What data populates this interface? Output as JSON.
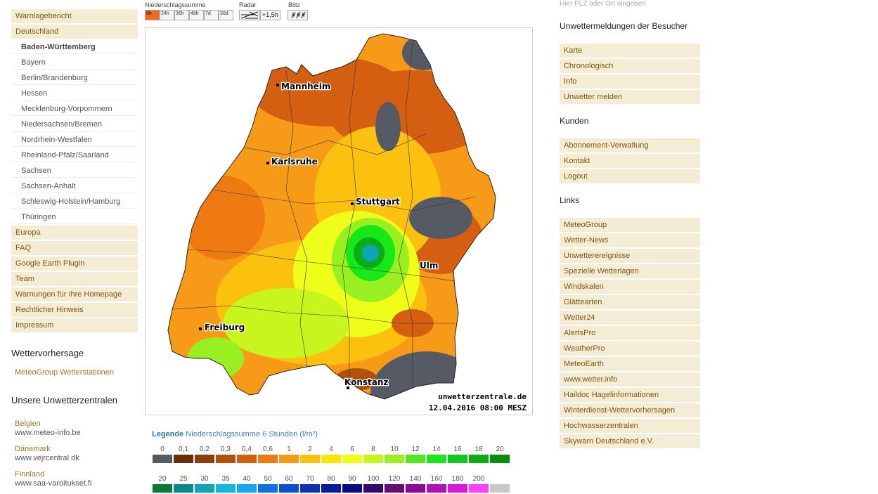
{
  "nav": {
    "top": [
      {
        "label": "Warnlagebericht"
      },
      {
        "label": "Deutschland"
      }
    ],
    "states": [
      {
        "label": "Baden-Württemberg"
      },
      {
        "label": "Bayern"
      },
      {
        "label": "Berlin/Brandenburg"
      },
      {
        "label": "Hessen"
      },
      {
        "label": "Mecklenburg-Vorpommern"
      },
      {
        "label": "Niedersachsen/Bremen"
      },
      {
        "label": "Nordrhein-Westfalen"
      },
      {
        "label": "Rheinland-Pfalz/Saarland"
      },
      {
        "label": "Sachsen"
      },
      {
        "label": "Sachsen-Anhalt"
      },
      {
        "label": "Schleswig-Holstein/Hamburg"
      },
      {
        "label": "Thüringen"
      }
    ],
    "bottom": [
      {
        "label": "Europa"
      },
      {
        "label": "FAQ"
      },
      {
        "label": "Google Earth Plugin"
      },
      {
        "label": "Team"
      },
      {
        "label": "Warnungen für Ihre Homepage"
      },
      {
        "label": "Rechtlicher Hinweis"
      },
      {
        "label": "Impressum"
      }
    ]
  },
  "forecast": {
    "heading": "Wettervorhersage",
    "link": "MeteoGroup Wetterstationen"
  },
  "centers": {
    "heading": "Unsere Unwetterzentralen",
    "items": [
      {
        "country": "Belgien",
        "url": "www.meteo-info.be"
      },
      {
        "country": "Dänemark",
        "url": "www.vejrcentral.dk"
      },
      {
        "country": "Finnland",
        "url": "www.saa-varoitukset.fi"
      }
    ]
  },
  "toolbar": {
    "precip_label": "Niederschlagssumme",
    "radar_label": "Radar",
    "lightning_label": "Blitz",
    "time_buttons": [
      "6h",
      "24h",
      "36h",
      "48h",
      "7d",
      "30d"
    ],
    "radar_offset": "+1,5h"
  },
  "map": {
    "cities": [
      "Mannheim",
      "Karlsruhe",
      "Stuttgart",
      "Ulm",
      "Freiburg",
      "Konstanz"
    ],
    "watermark": "unwetterzentrale.de",
    "timestamp": "12.04.2016 08:00 MESZ"
  },
  "legend": {
    "title": "Legende",
    "subtitle": "Niederschlagssumme 6 Stunden  (l/m²)",
    "row1": [
      {
        "v": "0",
        "c": "#555a64"
      },
      {
        "v": "0,1",
        "c": "#6b2f08"
      },
      {
        "v": "0,2",
        "c": "#8e3c0b"
      },
      {
        "v": "0,3",
        "c": "#b2500e"
      },
      {
        "v": "0,4",
        "c": "#d45f10"
      },
      {
        "v": "0,6",
        "c": "#f07a12"
      },
      {
        "v": "1",
        "c": "#f79a18"
      },
      {
        "v": "2",
        "c": "#fcc00e"
      },
      {
        "v": "4",
        "c": "#ffe400"
      },
      {
        "v": "6",
        "c": "#eefd1a"
      },
      {
        "v": "8",
        "c": "#c8f51d"
      },
      {
        "v": "10",
        "c": "#98f020"
      },
      {
        "v": "12",
        "c": "#55e81f"
      },
      {
        "v": "14",
        "c": "#18e818"
      },
      {
        "v": "16",
        "c": "#12c81c"
      },
      {
        "v": "18",
        "c": "#0aae14"
      },
      {
        "v": "20",
        "c": "#088c10"
      }
    ],
    "row2": [
      {
        "v": "20",
        "c": "#0a7a3a"
      },
      {
        "v": "25",
        "c": "#0a8a8c"
      },
      {
        "v": "30",
        "c": "#10a4b8"
      },
      {
        "v": "35",
        "c": "#10b8e0"
      },
      {
        "v": "40",
        "c": "#14a6f0"
      },
      {
        "v": "50",
        "c": "#1070e8"
      },
      {
        "v": "60",
        "c": "#1050d0"
      },
      {
        "v": "70",
        "c": "#1030b8"
      },
      {
        "v": "80",
        "c": "#0a1aa0"
      },
      {
        "v": "90",
        "c": "#0a0a88"
      },
      {
        "v": "100",
        "c": "#300a70"
      },
      {
        "v": "120",
        "c": "#6a0a78"
      },
      {
        "v": "140",
        "c": "#8e0a96"
      },
      {
        "v": "160",
        "c": "#b010b8"
      },
      {
        "v": "180",
        "c": "#e014e0"
      },
      {
        "v": "200",
        "c": "#ff40ff"
      },
      {
        "v": "",
        "c": "#c8c8c8"
      }
    ]
  },
  "right": {
    "search_placeholder": "Hier PLZ oder Ort eingeben",
    "visitor_heading": "Unwettermeldungen der Besucher",
    "visitor_items": [
      "Karte",
      "Chronologisch",
      "Info",
      "Unwetter melden"
    ],
    "customer_heading": "Kunden",
    "customer_items": [
      "Abonnement-Verwaltung",
      "Kontakt",
      "Logout"
    ],
    "links_heading": "Links",
    "links_items": [
      "MeteoGroup",
      "Wetter-News",
      "Unwetterereignisse",
      "Spezielle Wetterlagen",
      "Windskalen",
      "Glättearten",
      "Wetter24",
      "AlertsPro",
      "WeatherPro",
      "MeteoEarth",
      "www.wetter.info",
      "Haildoc Hagelinformationen",
      "Winterdienst-Wettervorhersagen",
      "Hochwasserzentralen",
      "Skywarn Deutschland e.V."
    ]
  }
}
